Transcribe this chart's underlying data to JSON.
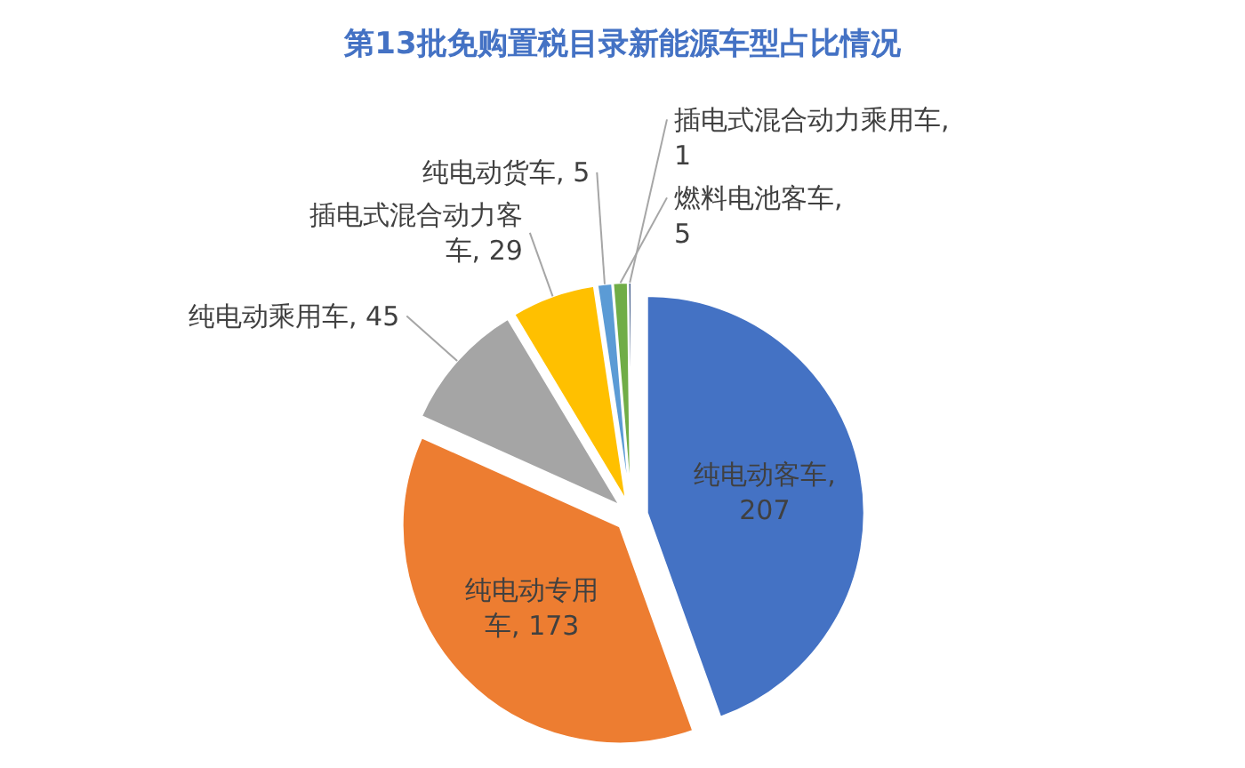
{
  "chart_data": {
    "type": "pie",
    "title": "第13批免购置税目录新能源车型占比情况",
    "categories": [
      "纯电动客车",
      "纯电动专用车",
      "纯电动乘用车",
      "插电式混合动力客车",
      "纯电动货车",
      "燃料电池客车",
      "插电式混合动力乘用车"
    ],
    "values": [
      207,
      173,
      45,
      29,
      5,
      5,
      1
    ],
    "colors": [
      "#4472c4",
      "#ed7d31",
      "#a5a5a5",
      "#ffc000",
      "#5b9bd5",
      "#70ad47",
      "#264478"
    ],
    "value_labels": [
      ", 207",
      ", 173",
      ", 45",
      ", 29",
      ", 5",
      ", 5",
      ", 1"
    ]
  }
}
